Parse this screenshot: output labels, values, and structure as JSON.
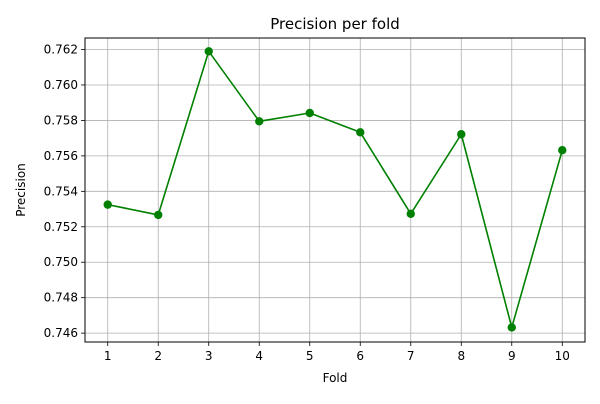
{
  "chart_data": {
    "type": "line",
    "title": "Precision per fold",
    "xlabel": "Fold",
    "ylabel": "Precision",
    "x": [
      1,
      2,
      3,
      4,
      5,
      6,
      7,
      8,
      9,
      10
    ],
    "series": [
      {
        "values": [
          0.75325,
          0.75267,
          0.7619,
          0.75795,
          0.75842,
          0.75733,
          0.75273,
          0.75722,
          0.74632,
          0.75632
        ],
        "color": "#008000",
        "marker": "circle"
      }
    ],
    "xlim": [
      0.55,
      10.45
    ],
    "ylim": [
      0.7455,
      0.76265
    ],
    "xticks": [
      "1",
      "2",
      "3",
      "4",
      "5",
      "6",
      "7",
      "8",
      "9",
      "10"
    ],
    "yticks": [
      "0.746",
      "0.748",
      "0.750",
      "0.752",
      "0.754",
      "0.756",
      "0.758",
      "0.760",
      "0.762"
    ],
    "ytick_values": [
      0.746,
      0.748,
      0.75,
      0.752,
      0.754,
      0.756,
      0.758,
      0.76,
      0.762
    ],
    "grid": true,
    "grid_color": "#b0b0b0"
  }
}
